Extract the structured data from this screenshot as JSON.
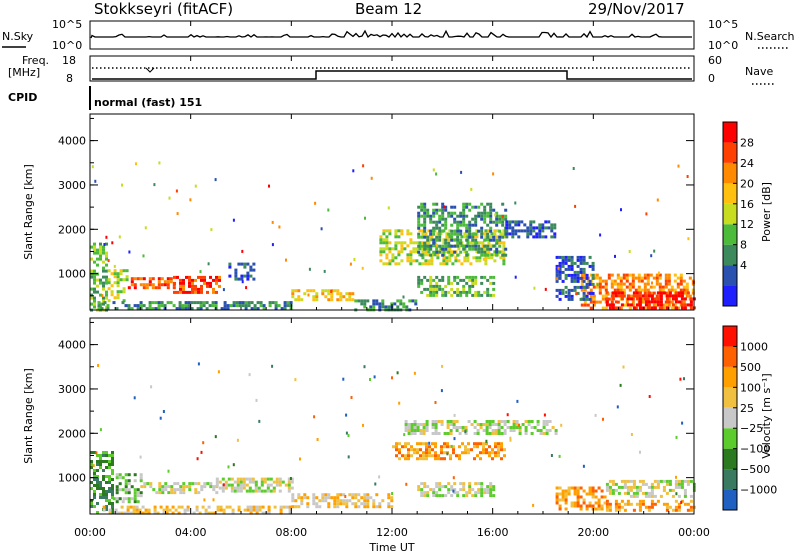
{
  "header": {
    "station": "Stokkseyri (fitACF)",
    "beam": "Beam 12",
    "date": "29/Nov/2017"
  },
  "top_panels": {
    "nsky": {
      "label": "N.Sky",
      "ticks": [
        "10^5",
        "10^0"
      ]
    },
    "nsearch": {
      "label": "N.Search",
      "ticks": [
        "10^5",
        "10^0"
      ]
    },
    "freq": {
      "label_line1": "Freq.",
      "label_line2": "[MHz]",
      "ticks": [
        "18",
        "8"
      ]
    },
    "nave": {
      "label": "Nave",
      "ticks": [
        "60",
        "0"
      ]
    },
    "cpid": {
      "label": "CPID",
      "value": "normal (fast) 151"
    }
  },
  "time_axis": {
    "label": "Time UT",
    "ticks": [
      "00:00",
      "04:00",
      "08:00",
      "12:00",
      "16:00",
      "20:00",
      "00:00"
    ]
  },
  "chart_data": [
    {
      "type": "heatmap",
      "name": "power_panel",
      "xlabel": "Time UT",
      "ylabel": "Slant Range [km]",
      "xlim_hours": [
        0,
        24
      ],
      "ylim": [
        180,
        4600
      ],
      "yticks": [
        "1000",
        "2000",
        "3000",
        "4000"
      ],
      "colorbar": {
        "label": "Power [dB]",
        "ticks": [
          "28",
          "24",
          "20",
          "16",
          "12",
          "8",
          "4"
        ],
        "colors": [
          "#2020ff",
          "#2a50b0",
          "#3c8a5c",
          "#4dbb3a",
          "#c8dc20",
          "#ffc010",
          "#ff8a00",
          "#ff4000",
          "#ff0000"
        ]
      },
      "regions": [
        {
          "t0": 0.0,
          "t1": 0.7,
          "r0": 200,
          "r1": 1700,
          "level": 3
        },
        {
          "t0": 0.7,
          "t1": 1.5,
          "r0": 400,
          "r1": 1100,
          "level": 4
        },
        {
          "t0": 1.5,
          "t1": 3.3,
          "r0": 650,
          "r1": 920,
          "level": 7
        },
        {
          "t0": 3.3,
          "t1": 5.1,
          "r0": 600,
          "r1": 950,
          "level": 7
        },
        {
          "t0": 0.3,
          "t1": 8.0,
          "r0": 190,
          "r1": 380,
          "level": 2
        },
        {
          "t0": 5.5,
          "t1": 6.5,
          "r0": 900,
          "r1": 1250,
          "level": 1
        },
        {
          "t0": 8.0,
          "t1": 10.5,
          "r0": 400,
          "r1": 650,
          "level": 5
        },
        {
          "t0": 10.5,
          "t1": 13.0,
          "r0": 190,
          "r1": 420,
          "level": 2
        },
        {
          "t0": 11.5,
          "t1": 16.5,
          "r0": 1200,
          "r1": 2000,
          "level": 4
        },
        {
          "t0": 13.0,
          "t1": 16.5,
          "r0": 1400,
          "r1": 2600,
          "level": 2
        },
        {
          "t0": 16.5,
          "t1": 18.5,
          "r0": 1800,
          "r1": 2200,
          "level": 1
        },
        {
          "t0": 13.0,
          "t1": 16.0,
          "r0": 500,
          "r1": 950,
          "level": 3
        },
        {
          "t0": 19.5,
          "t1": 24.0,
          "r0": 250,
          "r1": 1000,
          "level": 6
        },
        {
          "t0": 20.5,
          "t1": 24.0,
          "r0": 250,
          "r1": 600,
          "level": 8
        },
        {
          "t0": 18.5,
          "t1": 20.0,
          "r0": 400,
          "r1": 1400,
          "level": 1
        }
      ]
    },
    {
      "type": "heatmap",
      "name": "velocity_panel",
      "xlabel": "Time UT",
      "ylabel": "Slant Range [km]",
      "xlim_hours": [
        0,
        24
      ],
      "ylim": [
        180,
        4600
      ],
      "yticks": [
        "1000",
        "2000",
        "3000",
        "4000"
      ],
      "colorbar": {
        "label": "Velocity [m s⁻¹]",
        "ticks": [
          "1000",
          "500",
          "100",
          "25",
          "−25",
          "−100",
          "−500",
          "−1000"
        ],
        "colors": [
          "#2060c0",
          "#3a7a60",
          "#2c7a20",
          "#5ccc2c",
          "#c8c8c8",
          "#f0c040",
          "#ffa000",
          "#ff6000",
          "#ff1000"
        ]
      },
      "regions": [
        {
          "t0": 0.0,
          "t1": 0.9,
          "r0": 200,
          "r1": 1600,
          "level": 2
        },
        {
          "t0": 0.9,
          "t1": 2.0,
          "r0": 450,
          "r1": 1100,
          "level": 3
        },
        {
          "t0": 2.0,
          "t1": 5.0,
          "r0": 650,
          "r1": 900,
          "level": 4
        },
        {
          "t0": 5.0,
          "t1": 8.0,
          "r0": 700,
          "r1": 1000,
          "level": 4
        },
        {
          "t0": 0.5,
          "t1": 8.0,
          "r0": 190,
          "r1": 370,
          "level": 5
        },
        {
          "t0": 8.0,
          "t1": 12.0,
          "r0": 350,
          "r1": 650,
          "level": 5
        },
        {
          "t0": 12.0,
          "t1": 16.5,
          "r0": 1400,
          "r1": 1800,
          "level": 6
        },
        {
          "t0": 12.5,
          "t1": 18.5,
          "r0": 2000,
          "r1": 2300,
          "level": 4
        },
        {
          "t0": 13.0,
          "t1": 16.0,
          "r0": 600,
          "r1": 900,
          "level": 4
        },
        {
          "t0": 18.5,
          "t1": 20.5,
          "r0": 300,
          "r1": 800,
          "level": 6
        },
        {
          "t0": 20.5,
          "t1": 24.0,
          "r0": 250,
          "r1": 500,
          "level": 6
        },
        {
          "t0": 20.5,
          "t1": 24.0,
          "r0": 550,
          "r1": 950,
          "level": 4
        }
      ]
    }
  ]
}
